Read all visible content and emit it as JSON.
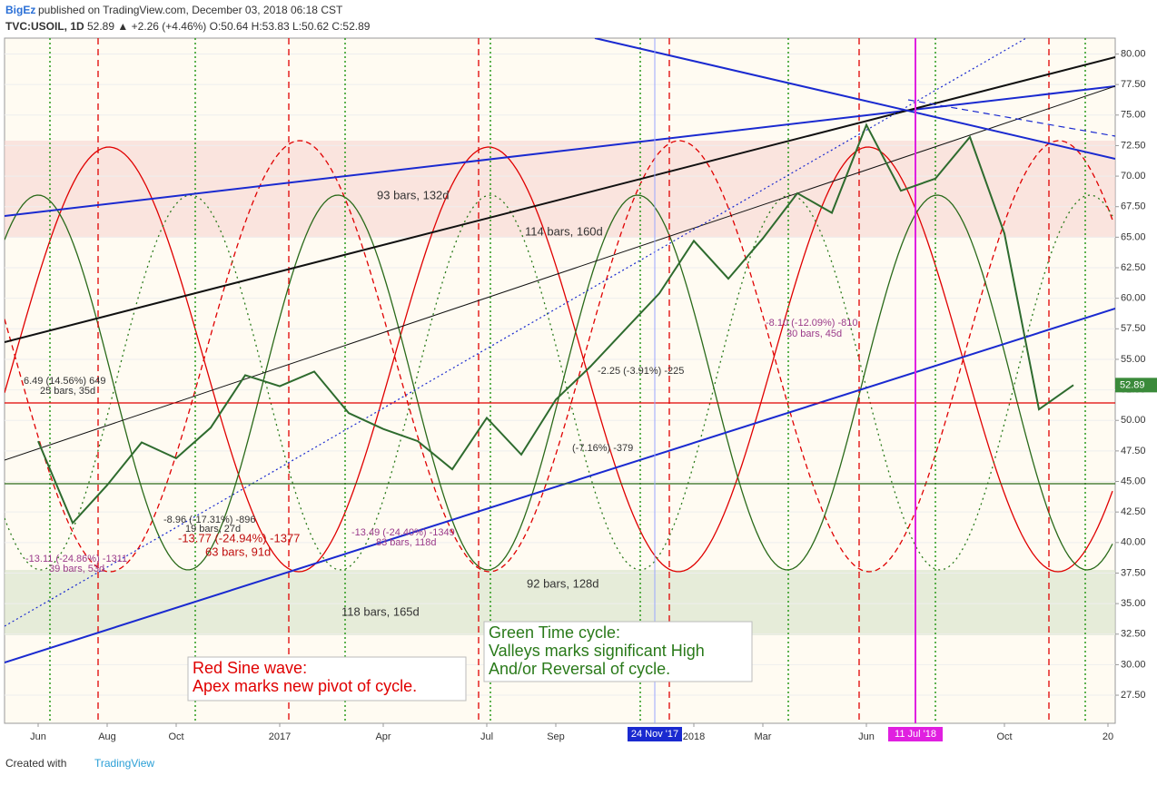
{
  "chart_data": {
    "type": "line",
    "publisher": "BigEz",
    "subtitle": "published on TradingView.com, December 03, 2018 06:18 CST",
    "title": "TVC:USOIL, 1D",
    "quote": "52.89 ▲ +2.26 (+4.46%) O:50.64 H:53.83 L:50.62 C:52.89",
    "series": [
      {
        "name": "USOIL",
        "color": "#2e6b2e",
        "x": [
          "2016-06",
          "2016-07",
          "2016-08",
          "2016-09",
          "2016-10",
          "2016-11",
          "2016-12",
          "2017-01",
          "2017-02",
          "2017-03",
          "2017-04",
          "2017-05",
          "2017-06",
          "2017-07",
          "2017-08",
          "2017-09",
          "2017-10",
          "2017-11",
          "2017-12",
          "2018-01",
          "2018-02",
          "2018-03",
          "2018-04",
          "2018-05",
          "2018-06",
          "2018-07",
          "2018-08",
          "2018-09",
          "2018-10",
          "2018-11",
          "2018-12"
        ],
        "values": [
          48.3,
          41.6,
          44.7,
          48.2,
          46.9,
          49.4,
          53.7,
          52.8,
          54.0,
          50.6,
          49.3,
          48.3,
          46.0,
          50.2,
          47.2,
          51.7,
          54.4,
          57.4,
          60.4,
          64.7,
          61.6,
          64.9,
          68.6,
          67.0,
          74.2,
          68.8,
          69.8,
          73.2,
          65.3,
          50.9,
          52.89
        ]
      }
    ],
    "last_price": 52.89,
    "ylim": [
      25.2,
      81.3
    ],
    "yticks": [
      {
        "value": 27.5,
        "label": "27.50"
      },
      {
        "value": 30,
        "label": "30.00"
      },
      {
        "value": 32.5,
        "label": "32.50"
      },
      {
        "value": 35,
        "label": "35.00"
      },
      {
        "value": 37.5,
        "label": "37.50"
      },
      {
        "value": 40,
        "label": "40.00"
      },
      {
        "value": 42.5,
        "label": "42.50"
      },
      {
        "value": 45,
        "label": "45.00"
      },
      {
        "value": 47.5,
        "label": "47.50"
      },
      {
        "value": 50,
        "label": "50.00"
      },
      {
        "value": 52.5,
        "label": "52.50"
      },
      {
        "value": 55,
        "label": "55.00"
      },
      {
        "value": 57.5,
        "label": "57.50"
      },
      {
        "value": 60,
        "label": "60.00"
      },
      {
        "value": 62.5,
        "label": "62.50"
      },
      {
        "value": 65,
        "label": "65.00"
      },
      {
        "value": 67.5,
        "label": "67.50"
      },
      {
        "value": 70,
        "label": "70.00"
      },
      {
        "value": 72.5,
        "label": "72.50"
      },
      {
        "value": 75,
        "label": "75.00"
      },
      {
        "value": 77.5,
        "label": "77.50"
      },
      {
        "value": 80,
        "label": "80.00"
      }
    ],
    "xticks": [
      {
        "value": "2016-06",
        "label": "Jun"
      },
      {
        "value": "2016-08",
        "label": "Aug"
      },
      {
        "value": "2016-10",
        "label": "Oct"
      },
      {
        "value": "2017-01",
        "label": "2017"
      },
      {
        "value": "2017-04",
        "label": "Apr"
      },
      {
        "value": "2017-07",
        "label": "Jul"
      },
      {
        "value": "2017-09",
        "label": "Sep"
      },
      {
        "value": "2018-01",
        "label": "2018"
      },
      {
        "value": "2018-03",
        "label": "Mar"
      },
      {
        "value": "2018-06",
        "label": "Jun"
      },
      {
        "value": "2018-10",
        "label": "Oct"
      },
      {
        "value": "2019-01",
        "label": "20"
      }
    ],
    "markers": [
      "24 Nov '17",
      "11 Jul '18"
    ],
    "annotations": [
      "93 bars, 132d",
      "114 bars, 160d",
      "118 bars, 165d",
      "92 bars, 128d",
      "-2.25 (-3.91%) -225",
      "-8.10 (-12.09%) -810",
      "30 bars, 45d",
      "6.49 (14.56%) 649",
      "25 bars, 35d",
      "-8.96 (-17.31%) -896",
      "19 bars, 27d",
      "-13.77 (-24.94%) -1377",
      "63 bars, 91d",
      "-13.49 (-24.40%) -1349",
      "83 bars, 118d",
      "-13.11 (-24.86%) -1311",
      "39 bars, 53d",
      "(-7.16%) -379"
    ],
    "notes": [
      {
        "lines": [
          "Red Sine wave:",
          "Apex marks new pivot of cycle."
        ],
        "color": "#e00000"
      },
      {
        "lines": [
          "Green Time cycle:",
          "Valleys marks significant High",
          "And/or Reversal of cycle."
        ],
        "color": "#2a7a1a"
      }
    ],
    "footer": "Created with",
    "brand": "TradingView"
  }
}
